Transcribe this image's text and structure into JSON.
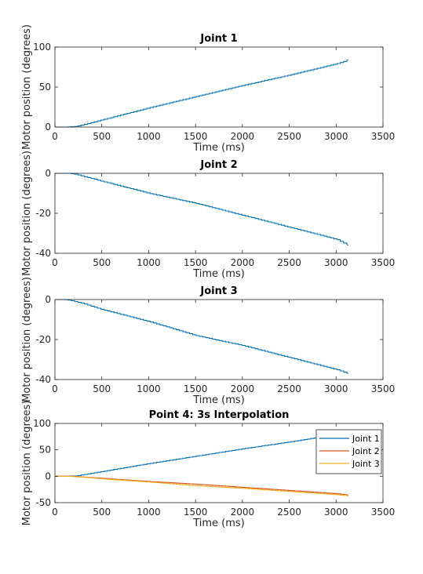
{
  "chart_data": [
    {
      "type": "line",
      "title": "Joint 1",
      "xlabel": "Time (ms)",
      "ylabel": "Motor position (degrees)",
      "xlim": [
        0,
        3500
      ],
      "ylim": [
        0,
        100
      ],
      "xticks": [
        0,
        500,
        1000,
        1500,
        2000,
        2500,
        3000,
        3500
      ],
      "yticks": [
        0,
        50,
        100
      ],
      "series": [
        {
          "color": "#0072BD",
          "x": [
            0,
            100,
            200,
            250,
            300,
            500,
            1000,
            1500,
            2000,
            2500,
            3000,
            3130
          ],
          "y": [
            0,
            0,
            0.5,
            1.5,
            3,
            9,
            24,
            38,
            52,
            65,
            79,
            84
          ]
        }
      ]
    },
    {
      "type": "line",
      "title": "Joint 2",
      "xlabel": "Time (ms)",
      "ylabel": "Motor position (degrees)",
      "xlim": [
        0,
        3500
      ],
      "ylim": [
        -40,
        0
      ],
      "xticks": [
        0,
        500,
        1000,
        1500,
        2000,
        2500,
        3000,
        3500
      ],
      "yticks": [
        -40,
        -20,
        0
      ],
      "series": [
        {
          "color": "#0072BD",
          "x": [
            0,
            150,
            200,
            300,
            500,
            1000,
            1500,
            2000,
            2500,
            3000,
            3130
          ],
          "y": [
            0,
            0,
            -0.3,
            -1.5,
            -4,
            -10,
            -15,
            -21,
            -27,
            -33,
            -36
          ]
        }
      ]
    },
    {
      "type": "line",
      "title": "Joint 3",
      "xlabel": "Time (ms)",
      "ylabel": "Motor position (degrees)",
      "xlim": [
        0,
        3500
      ],
      "ylim": [
        -40,
        0
      ],
      "xticks": [
        0,
        500,
        1000,
        1500,
        2000,
        2500,
        3000,
        3500
      ],
      "yticks": [
        -40,
        -20,
        0
      ],
      "series": [
        {
          "color": "#0072BD",
          "x": [
            0,
            100,
            150,
            300,
            500,
            1000,
            1500,
            2000,
            2500,
            3000,
            3130
          ],
          "y": [
            0,
            0,
            -0.3,
            -2,
            -5,
            -11,
            -18,
            -23,
            -29,
            -35,
            -37
          ]
        }
      ]
    },
    {
      "type": "line",
      "title": "Point 4: 3s Interpolation",
      "xlabel": "Time (ms)",
      "ylabel": "Motor position (degrees)",
      "xlim": [
        0,
        3500
      ],
      "ylim": [
        -50,
        100
      ],
      "xticks": [
        0,
        500,
        1000,
        1500,
        2000,
        2500,
        3000,
        3500
      ],
      "yticks": [
        -50,
        0,
        50,
        100
      ],
      "legend": "top-right",
      "series": [
        {
          "name": "Joint 1",
          "color": "#0072BD",
          "x": [
            0,
            100,
            200,
            250,
            300,
            500,
            1000,
            1500,
            2000,
            2500,
            3000,
            3130
          ],
          "y": [
            0,
            0,
            0.5,
            1.5,
            3,
            9,
            24,
            38,
            52,
            65,
            79,
            84
          ]
        },
        {
          "name": "Joint 2",
          "color": "#D95319",
          "x": [
            0,
            150,
            200,
            300,
            500,
            1000,
            1500,
            2000,
            2500,
            3000,
            3130
          ],
          "y": [
            0,
            0,
            -0.3,
            -1.5,
            -4,
            -10,
            -15,
            -21,
            -27,
            -33,
            -36
          ]
        },
        {
          "name": "Joint 3",
          "color": "#EDB120",
          "x": [
            0,
            100,
            150,
            300,
            500,
            1000,
            1500,
            2000,
            2500,
            3000,
            3130
          ],
          "y": [
            0,
            0,
            -0.3,
            -2,
            -5,
            -11,
            -18,
            -23,
            -29,
            -35,
            -37
          ]
        }
      ]
    }
  ]
}
